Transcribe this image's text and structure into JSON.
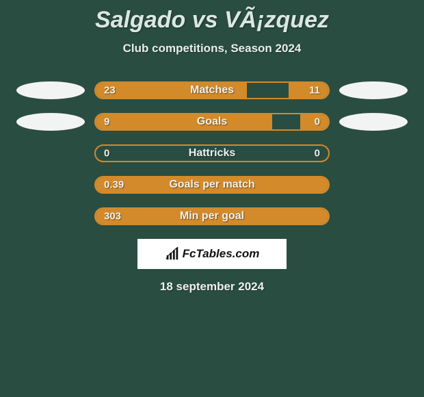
{
  "header": {
    "title": "Salgado vs VÃ¡zquez",
    "subtitle": "Club competitions, Season 2024"
  },
  "colors": {
    "background": "#2a4d42",
    "bar_fill": "#d28a2b",
    "bar_border": "#d28a2b",
    "ellipse": "#f2f4f3",
    "text_light": "#eef2ef",
    "badge_bg": "#ffffff"
  },
  "layout": {
    "bar_track_width": 344,
    "bar_track_height": 26,
    "ellipse_width": 100,
    "ellipse_height": 26,
    "row_gap": 20
  },
  "rows": [
    {
      "label": "Matches",
      "left_val": "23",
      "right_val": "11",
      "left_pct": 65,
      "right_pct": 17,
      "show_left_ellipse": true,
      "show_right_ellipse": true
    },
    {
      "label": "Goals",
      "left_val": "9",
      "right_val": "0",
      "left_pct": 76,
      "right_pct": 12,
      "show_left_ellipse": true,
      "show_right_ellipse": true
    },
    {
      "label": "Hattricks",
      "left_val": "0",
      "right_val": "0",
      "left_pct": 0,
      "right_pct": 0,
      "show_left_ellipse": false,
      "show_right_ellipse": false
    },
    {
      "label": "Goals per match",
      "left_val": "0.39",
      "right_val": "",
      "left_pct": 100,
      "right_pct": 0,
      "show_left_ellipse": false,
      "show_right_ellipse": false
    },
    {
      "label": "Min per goal",
      "left_val": "303",
      "right_val": "",
      "left_pct": 100,
      "right_pct": 0,
      "show_left_ellipse": false,
      "show_right_ellipse": false
    }
  ],
  "badge": {
    "text": "FcTables.com",
    "icon_name": "chart-bar-icon"
  },
  "footer": {
    "date": "18 september 2024"
  }
}
